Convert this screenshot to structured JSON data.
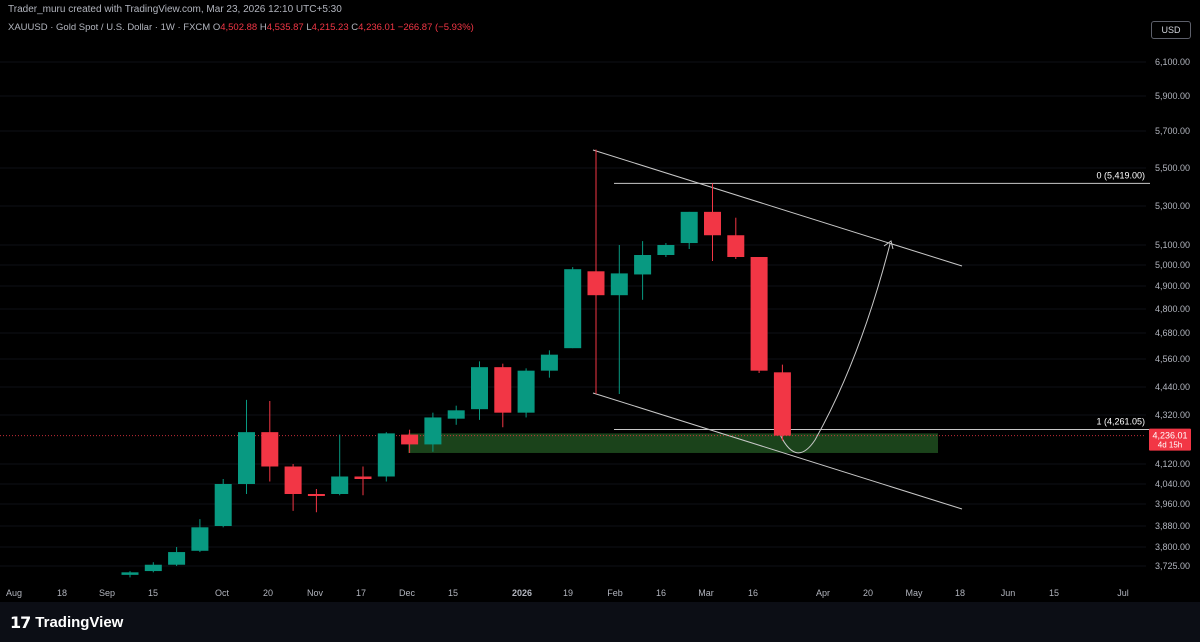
{
  "credit": "Trader_muru created with TradingView.com, Mar 23, 2026 12:10 UTC+5:30",
  "symbol": {
    "name": "XAUUSD · Gold Spot / U.S. Dollar · 1W · FXCM",
    "open_label": "O",
    "open": "4,502.88",
    "high_label": "H",
    "high": "4,535.87",
    "low_label": "L",
    "low": "4,215.23",
    "close_label": "C",
    "close": "4,236.01",
    "change": "−266.87 (−5.93%)"
  },
  "currency_button": "USD",
  "brand": {
    "logo_icon": "tradingview-logo-icon",
    "name": "TradingView"
  },
  "colors": {
    "up": "#089981",
    "down": "#f23645",
    "zone": "#1e4a1e",
    "line": "#d1d4dc"
  },
  "chart_data": {
    "type": "candlestick",
    "interval": "1W",
    "y_axis": {
      "ticks": [
        3725,
        3800,
        3880,
        3960,
        4040,
        4120,
        4320,
        4440,
        4560,
        4680,
        4800,
        4900,
        5000,
        5100,
        5300,
        5500,
        5700,
        5900,
        6100
      ],
      "tick_labels": [
        "3,725.00",
        "3,800.00",
        "3,880.00",
        "3,960.00",
        "4,040.00",
        "4,120.00",
        "4,320.00",
        "4,440.00",
        "4,560.00",
        "4,680.00",
        "4,800.00",
        "4,900.00",
        "5,000.00",
        "5,100.00",
        "5,300.00",
        "5,500.00",
        "5,700.00",
        "5,900.00",
        "6,100.00"
      ]
    },
    "x_axis": {
      "tick_labels": [
        "Aug",
        "18",
        "Sep",
        "15",
        "Oct",
        "20",
        "Nov",
        "17",
        "Dec",
        "15",
        "2026",
        "19",
        "Feb",
        "16",
        "Mar",
        "16",
        "Apr",
        "20",
        "May",
        "18",
        "Jun",
        "15",
        "Jul"
      ]
    },
    "candles": [
      {
        "o": 3690,
        "h": 3705,
        "l": 3680,
        "c": 3700
      },
      {
        "o": 3705,
        "h": 3740,
        "l": 3700,
        "c": 3730
      },
      {
        "o": 3730,
        "h": 3800,
        "l": 3725,
        "c": 3780
      },
      {
        "o": 3785,
        "h": 3905,
        "l": 3780,
        "c": 3875
      },
      {
        "o": 3880,
        "h": 4060,
        "l": 3875,
        "c": 4040
      },
      {
        "o": 4040,
        "h": 4385,
        "l": 4000,
        "c": 4250
      },
      {
        "o": 4250,
        "h": 4380,
        "l": 4050,
        "c": 4110
      },
      {
        "o": 4110,
        "h": 4120,
        "l": 3935,
        "c": 4000
      },
      {
        "o": 4000,
        "h": 4020,
        "l": 3930,
        "c": 3995
      },
      {
        "o": 4000,
        "h": 4240,
        "l": 3995,
        "c": 4070
      },
      {
        "o": 4070,
        "h": 4110,
        "l": 3995,
        "c": 4060
      },
      {
        "o": 4070,
        "h": 4250,
        "l": 4050,
        "c": 4245
      },
      {
        "o": 4240,
        "h": 4260,
        "l": 4165,
        "c": 4200
      },
      {
        "o": 4200,
        "h": 4330,
        "l": 4170,
        "c": 4310
      },
      {
        "o": 4305,
        "h": 4360,
        "l": 4280,
        "c": 4340
      },
      {
        "o": 4345,
        "h": 4550,
        "l": 4300,
        "c": 4525
      },
      {
        "o": 4525,
        "h": 4540,
        "l": 4270,
        "c": 4330
      },
      {
        "o": 4330,
        "h": 4520,
        "l": 4310,
        "c": 4510
      },
      {
        "o": 4510,
        "h": 4600,
        "l": 4480,
        "c": 4580
      },
      {
        "o": 4610,
        "h": 4990,
        "l": 4610,
        "c": 4980
      },
      {
        "o": 4970,
        "h": 5600,
        "l": 4410,
        "c": 4860
      },
      {
        "o": 4860,
        "h": 5100,
        "l": 4410,
        "c": 4960
      },
      {
        "o": 4955,
        "h": 5120,
        "l": 4840,
        "c": 5050
      },
      {
        "o": 5050,
        "h": 5110,
        "l": 5040,
        "c": 5100
      },
      {
        "o": 5110,
        "h": 5270,
        "l": 5080,
        "c": 5270
      },
      {
        "o": 5270,
        "h": 5419,
        "l": 5020,
        "c": 5150
      },
      {
        "o": 5150,
        "h": 5240,
        "l": 5030,
        "c": 5040
      },
      {
        "o": 5040,
        "h": 5040,
        "l": 4500,
        "c": 4510
      },
      {
        "o": 4502.88,
        "h": 4535.87,
        "l": 4215.23,
        "c": 4236.01
      }
    ],
    "annotations": [
      {
        "type": "fib_level",
        "label": "0 (5,419.00)",
        "value": 5419
      },
      {
        "type": "fib_level",
        "label": "1 (4,261.05)",
        "value": 4261.05
      },
      {
        "type": "price_tag",
        "label": "4,236.01",
        "sublabel": "4d 15h",
        "value": 4236.01
      },
      {
        "type": "zone",
        "from": 4165,
        "to": 4245
      },
      {
        "type": "channel",
        "lines": 2
      },
      {
        "type": "projection_curve"
      }
    ]
  }
}
